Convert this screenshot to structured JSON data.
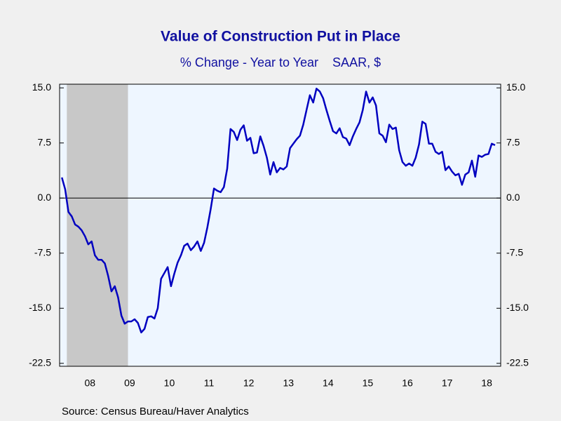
{
  "chart_data": {
    "type": "line",
    "title": "Value of Construction Put in Place",
    "subtitle": "% Change - Year to Year    SAAR, $",
    "source": "Source:  Census Bureau/Haver Analytics",
    "xlim": [
      2007.735,
      2018.85
    ],
    "xticks": [
      {
        "value": 2008.5,
        "label": "08"
      },
      {
        "value": 2009.5,
        "label": "09"
      },
      {
        "value": 2010.5,
        "label": "10"
      },
      {
        "value": 2011.5,
        "label": "11"
      },
      {
        "value": 2012.5,
        "label": "12"
      },
      {
        "value": 2013.5,
        "label": "13"
      },
      {
        "value": 2014.5,
        "label": "14"
      },
      {
        "value": 2015.5,
        "label": "15"
      },
      {
        "value": 2016.5,
        "label": "16"
      },
      {
        "value": 2017.5,
        "label": "17"
      },
      {
        "value": 2018.5,
        "label": "18"
      }
    ],
    "ylim": [
      -22.9,
      15.5
    ],
    "yticks": [
      {
        "value": 15,
        "label": "15.0"
      },
      7.5,
      {
        "value": 0,
        "label": "0.0"
      },
      -7.5,
      {
        "value": -15,
        "label": "-15.0"
      },
      -22.5
    ],
    "y2lim": [
      -22.9,
      15.5
    ],
    "y2ticks": [
      {
        "value": 15,
        "label": "15.0"
      },
      7.5,
      {
        "value": 0,
        "label": "0.0"
      },
      -7.5,
      {
        "value": -15,
        "label": "-15.0"
      },
      -22.5
    ],
    "reference_line": 0,
    "recession": [
      2007.917,
      2009.458
    ],
    "x": [
      2007.792,
      2007.875,
      2007.958,
      2008.042,
      2008.125,
      2008.208,
      2008.292,
      2008.375,
      2008.458,
      2008.542,
      2008.625,
      2008.708,
      2008.792,
      2008.875,
      2008.958,
      2009.042,
      2009.125,
      2009.208,
      2009.292,
      2009.375,
      2009.458,
      2009.542,
      2009.625,
      2009.708,
      2009.792,
      2009.875,
      2009.958,
      2010.042,
      2010.125,
      2010.208,
      2010.292,
      2010.375,
      2010.458,
      2010.542,
      2010.625,
      2010.708,
      2010.792,
      2010.875,
      2010.958,
      2011.042,
      2011.125,
      2011.208,
      2011.292,
      2011.375,
      2011.458,
      2011.542,
      2011.625,
      2011.708,
      2011.792,
      2011.875,
      2011.958,
      2012.042,
      2012.125,
      2012.208,
      2012.292,
      2012.375,
      2012.458,
      2012.542,
      2012.625,
      2012.708,
      2012.792,
      2012.875,
      2012.958,
      2013.042,
      2013.125,
      2013.208,
      2013.292,
      2013.375,
      2013.458,
      2013.542,
      2013.625,
      2013.708,
      2013.792,
      2013.875,
      2013.958,
      2014.042,
      2014.125,
      2014.208,
      2014.292,
      2014.375,
      2014.458,
      2014.542,
      2014.625,
      2014.708,
      2014.792,
      2014.875,
      2014.958,
      2015.042,
      2015.125,
      2015.208,
      2015.292,
      2015.375,
      2015.458,
      2015.542,
      2015.625,
      2015.708,
      2015.792,
      2015.875,
      2015.958,
      2016.042,
      2016.125,
      2016.208,
      2016.292,
      2016.375,
      2016.458,
      2016.542,
      2016.625,
      2016.708,
      2016.792,
      2016.875,
      2016.958,
      2017.042,
      2017.125,
      2017.208,
      2017.292,
      2017.375,
      2017.458,
      2017.542,
      2017.625,
      2017.708,
      2017.792,
      2017.875,
      2017.958,
      2018.042,
      2018.125,
      2018.208,
      2018.292,
      2018.375,
      2018.458,
      2018.542,
      2018.625,
      2018.708
    ],
    "series": [
      {
        "color": "#0000c0",
        "values": [
          2.8,
          1.2,
          -1.9,
          -2.5,
          -3.6,
          -3.9,
          -4.4,
          -5.2,
          -6.3,
          -5.9,
          -7.8,
          -8.4,
          -8.4,
          -8.9,
          -10.6,
          -12.7,
          -12.0,
          -13.5,
          -16.0,
          -17.1,
          -16.8,
          -16.8,
          -16.5,
          -17.0,
          -18.3,
          -17.8,
          -16.2,
          -16.1,
          -16.4,
          -15.0,
          -11.0,
          -10.2,
          -9.4,
          -12.0,
          -10.3,
          -8.8,
          -7.8,
          -6.5,
          -6.2,
          -7.1,
          -6.6,
          -5.9,
          -7.2,
          -6.1,
          -4.0,
          -1.5,
          1.3,
          1.0,
          0.8,
          1.5,
          4.0,
          9.4,
          9.0,
          7.9,
          9.3,
          9.9,
          7.8,
          8.2,
          6.1,
          6.2,
          8.4,
          7.1,
          5.5,
          3.2,
          4.9,
          3.5,
          4.1,
          3.9,
          4.3,
          6.8,
          7.4,
          8.0,
          8.5,
          10.0,
          12.0,
          14.0,
          13.0,
          14.9,
          14.5,
          13.6,
          12.0,
          10.5,
          9.1,
          8.8,
          9.5,
          8.3,
          8.1,
          7.2,
          8.4,
          9.4,
          10.3,
          12.0,
          14.5,
          13.0,
          13.7,
          12.6,
          8.8,
          8.5,
          7.6,
          10.0,
          9.4,
          9.6,
          6.5,
          4.9,
          4.4,
          4.7,
          4.4,
          5.5,
          7.3,
          10.4,
          10.1,
          7.4,
          7.4,
          6.3,
          6.0,
          6.3,
          3.8,
          4.3,
          3.6,
          3.1,
          3.3,
          1.8,
          3.2,
          3.5,
          5.1,
          2.9,
          5.8,
          5.6,
          5.9,
          6.0,
          7.4,
          7.2
        ]
      }
    ]
  }
}
